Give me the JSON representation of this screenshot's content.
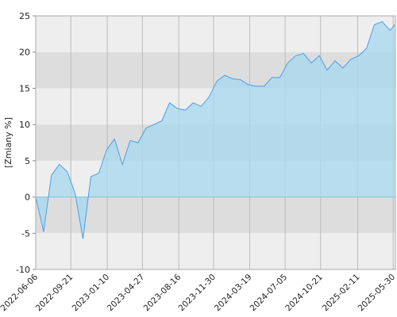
{
  "chart_data": {
    "type": "area",
    "y_label": "[Zmiany %]",
    "x": [
      "2022-06-06",
      "2022-06-30",
      "2022-07-24",
      "2022-08-17",
      "2022-09-10",
      "2022-10-04",
      "2022-10-28",
      "2022-11-21",
      "2022-12-15",
      "2023-01-08",
      "2023-02-01",
      "2023-02-25",
      "2023-03-21",
      "2023-04-14",
      "2023-05-08",
      "2023-06-01",
      "2023-06-25",
      "2023-07-19",
      "2023-08-12",
      "2023-09-05",
      "2023-09-29",
      "2023-10-23",
      "2023-11-16",
      "2023-12-10",
      "2024-01-03",
      "2024-01-27",
      "2024-02-20",
      "2024-03-15",
      "2024-04-08",
      "2024-05-02",
      "2024-05-26",
      "2024-06-19",
      "2024-07-13",
      "2024-08-06",
      "2024-08-30",
      "2024-09-23",
      "2024-10-17",
      "2024-11-10",
      "2024-12-04",
      "2024-12-28",
      "2025-01-21",
      "2025-02-14",
      "2025-03-10",
      "2025-04-03",
      "2025-04-27",
      "2025-05-21",
      "2025-06-04"
    ],
    "values": [
      0,
      -4.8,
      3,
      4.5,
      3.5,
      0.5,
      -5.8,
      2.8,
      3.3,
      6.5,
      8,
      4.5,
      7.8,
      7.5,
      9.5,
      10,
      10.5,
      13,
      12.2,
      12,
      13,
      12.5,
      13.8,
      16,
      16.8,
      16.3,
      16.2,
      15.5,
      15.3,
      15.3,
      16.5,
      16.5,
      18.5,
      19.5,
      19.8,
      18.5,
      19.5,
      17.5,
      18.8,
      17.8,
      19,
      19.5,
      20.5,
      23.8,
      24.2,
      23,
      23.8
    ],
    "color": "#4d9fe6",
    "fill": "#a9d8ef",
    "zero_line_color": "#7cc8d8",
    "band_colors": [
      "#eeeeee",
      "#dddddd"
    ],
    "grid_color": "#bbbbbb",
    "xlim": [
      "2022-06-06",
      "2025-06-06"
    ],
    "xticks": [
      "2022-06-06",
      "2022-09-21",
      "2023-01-10",
      "2023-04-27",
      "2023-08-16",
      "2023-11-30",
      "2024-03-19",
      "2024-07-05",
      "2024-10-21",
      "2025-02-11",
      "2025-05-30"
    ],
    "ylim": [
      -10,
      25
    ],
    "yticks": [
      -10,
      -5,
      0,
      5,
      10,
      15,
      20,
      25
    ]
  }
}
